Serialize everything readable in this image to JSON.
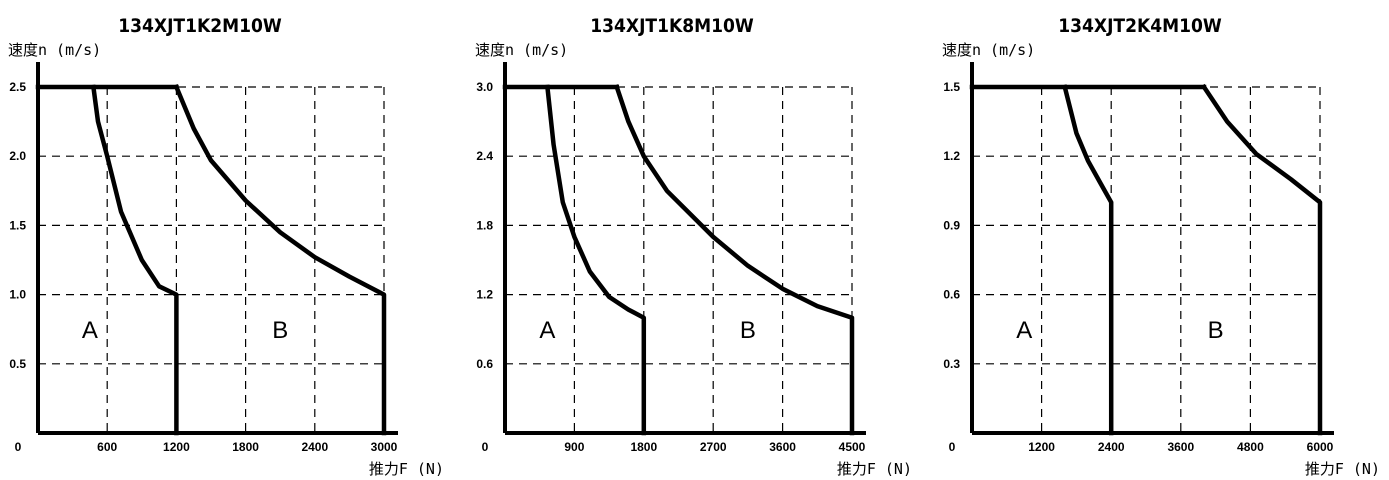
{
  "chart_data": [
    {
      "type": "line",
      "title": "134XJT1K2M10W",
      "ylabel": "速度n (m/s)",
      "xlabel": "推力F (N)",
      "xlim": [
        0,
        3000
      ],
      "ylim": [
        0,
        2.5
      ],
      "origin_label": "0",
      "x_ticks": [
        600,
        1200,
        1800,
        2400,
        3000
      ],
      "x_tick_labels": [
        "600",
        "1200",
        "1800",
        "2400",
        "3000"
      ],
      "y_ticks": [
        0.5,
        1.0,
        1.5,
        2.0,
        2.5
      ],
      "y_tick_labels": [
        "0.5",
        "1.0",
        "1.5",
        "2.0",
        "2.5"
      ],
      "grid": true,
      "regions": [
        {
          "label": "A",
          "x": 450,
          "y": 0.75
        },
        {
          "label": "B",
          "x": 2100,
          "y": 0.75
        }
      ],
      "series": [
        {
          "points": [
            [
              0,
              2.5
            ],
            [
              1200,
              2.5
            ]
          ]
        },
        {
          "points": [
            [
              480,
              2.5
            ],
            [
              520,
              2.25
            ],
            [
              600,
              2.0
            ],
            [
              720,
              1.6
            ],
            [
              900,
              1.25
            ],
            [
              1050,
              1.06
            ],
            [
              1200,
              1.0
            ],
            [
              1200,
              0
            ]
          ]
        },
        {
          "points": [
            [
              1200,
              2.5
            ],
            [
              1350,
              2.2
            ],
            [
              1500,
              1.97
            ],
            [
              1800,
              1.68
            ],
            [
              2100,
              1.45
            ],
            [
              2400,
              1.27
            ],
            [
              2700,
              1.13
            ],
            [
              3000,
              1.0
            ],
            [
              3000,
              0
            ]
          ]
        }
      ]
    },
    {
      "type": "line",
      "title": "134XJT1K8M10W",
      "ylabel": "速度n (m/s)",
      "xlabel": "推力F (N)",
      "xlim": [
        0,
        4500
      ],
      "ylim": [
        0,
        3.0
      ],
      "origin_label": "0",
      "x_ticks": [
        900,
        1800,
        2700,
        3600,
        4500
      ],
      "x_tick_labels": [
        "900",
        "1800",
        "2700",
        "3600",
        "4500"
      ],
      "y_ticks": [
        0.6,
        1.2,
        1.8,
        2.4,
        3.0
      ],
      "y_tick_labels": [
        "0.6",
        "1.2",
        "1.8",
        "2.4",
        "3.0"
      ],
      "grid": true,
      "regions": [
        {
          "label": "A",
          "x": 550,
          "y": 0.9
        },
        {
          "label": "B",
          "x": 3150,
          "y": 0.9
        }
      ],
      "series": [
        {
          "points": [
            [
              0,
              3.0
            ],
            [
              1450,
              3.0
            ]
          ]
        },
        {
          "points": [
            [
              550,
              3.0
            ],
            [
              630,
              2.5
            ],
            [
              750,
              2.0
            ],
            [
              900,
              1.7
            ],
            [
              1100,
              1.4
            ],
            [
              1350,
              1.18
            ],
            [
              1600,
              1.07
            ],
            [
              1800,
              1.0
            ],
            [
              1800,
              0
            ]
          ]
        },
        {
          "points": [
            [
              1450,
              3.0
            ],
            [
              1600,
              2.7
            ],
            [
              1800,
              2.4
            ],
            [
              2100,
              2.1
            ],
            [
              2700,
              1.7
            ],
            [
              3150,
              1.45
            ],
            [
              3600,
              1.25
            ],
            [
              4050,
              1.1
            ],
            [
              4500,
              1.0
            ],
            [
              4500,
              0
            ]
          ]
        }
      ]
    },
    {
      "type": "line",
      "title": "134XJT2K4M10W",
      "ylabel": "速度n (m/s)",
      "xlabel": "推力F (N)",
      "xlim": [
        0,
        6000
      ],
      "ylim": [
        0,
        1.5
      ],
      "origin_label": "0",
      "x_ticks": [
        1200,
        2400,
        3600,
        4800,
        6000
      ],
      "x_tick_labels": [
        "1200",
        "2400",
        "3600",
        "4800",
        "6000"
      ],
      "y_ticks": [
        0.3,
        0.6,
        0.9,
        1.2,
        1.5
      ],
      "y_tick_labels": [
        "0.3",
        "0.6",
        "0.9",
        "1.2",
        "1.5"
      ],
      "grid": true,
      "regions": [
        {
          "label": "A",
          "x": 900,
          "y": 0.45
        },
        {
          "label": "B",
          "x": 4200,
          "y": 0.45
        }
      ],
      "series": [
        {
          "points": [
            [
              0,
              1.5
            ],
            [
              4000,
              1.5
            ]
          ]
        },
        {
          "points": [
            [
              1600,
              1.5
            ],
            [
              1800,
              1.3
            ],
            [
              2000,
              1.18
            ],
            [
              2200,
              1.09
            ],
            [
              2400,
              1.0
            ],
            [
              2400,
              0
            ]
          ]
        },
        {
          "points": [
            [
              4000,
              1.5
            ],
            [
              4400,
              1.35
            ],
            [
              4900,
              1.21
            ],
            [
              5500,
              1.1
            ],
            [
              6000,
              1.0
            ],
            [
              6000,
              0
            ]
          ]
        }
      ]
    }
  ]
}
